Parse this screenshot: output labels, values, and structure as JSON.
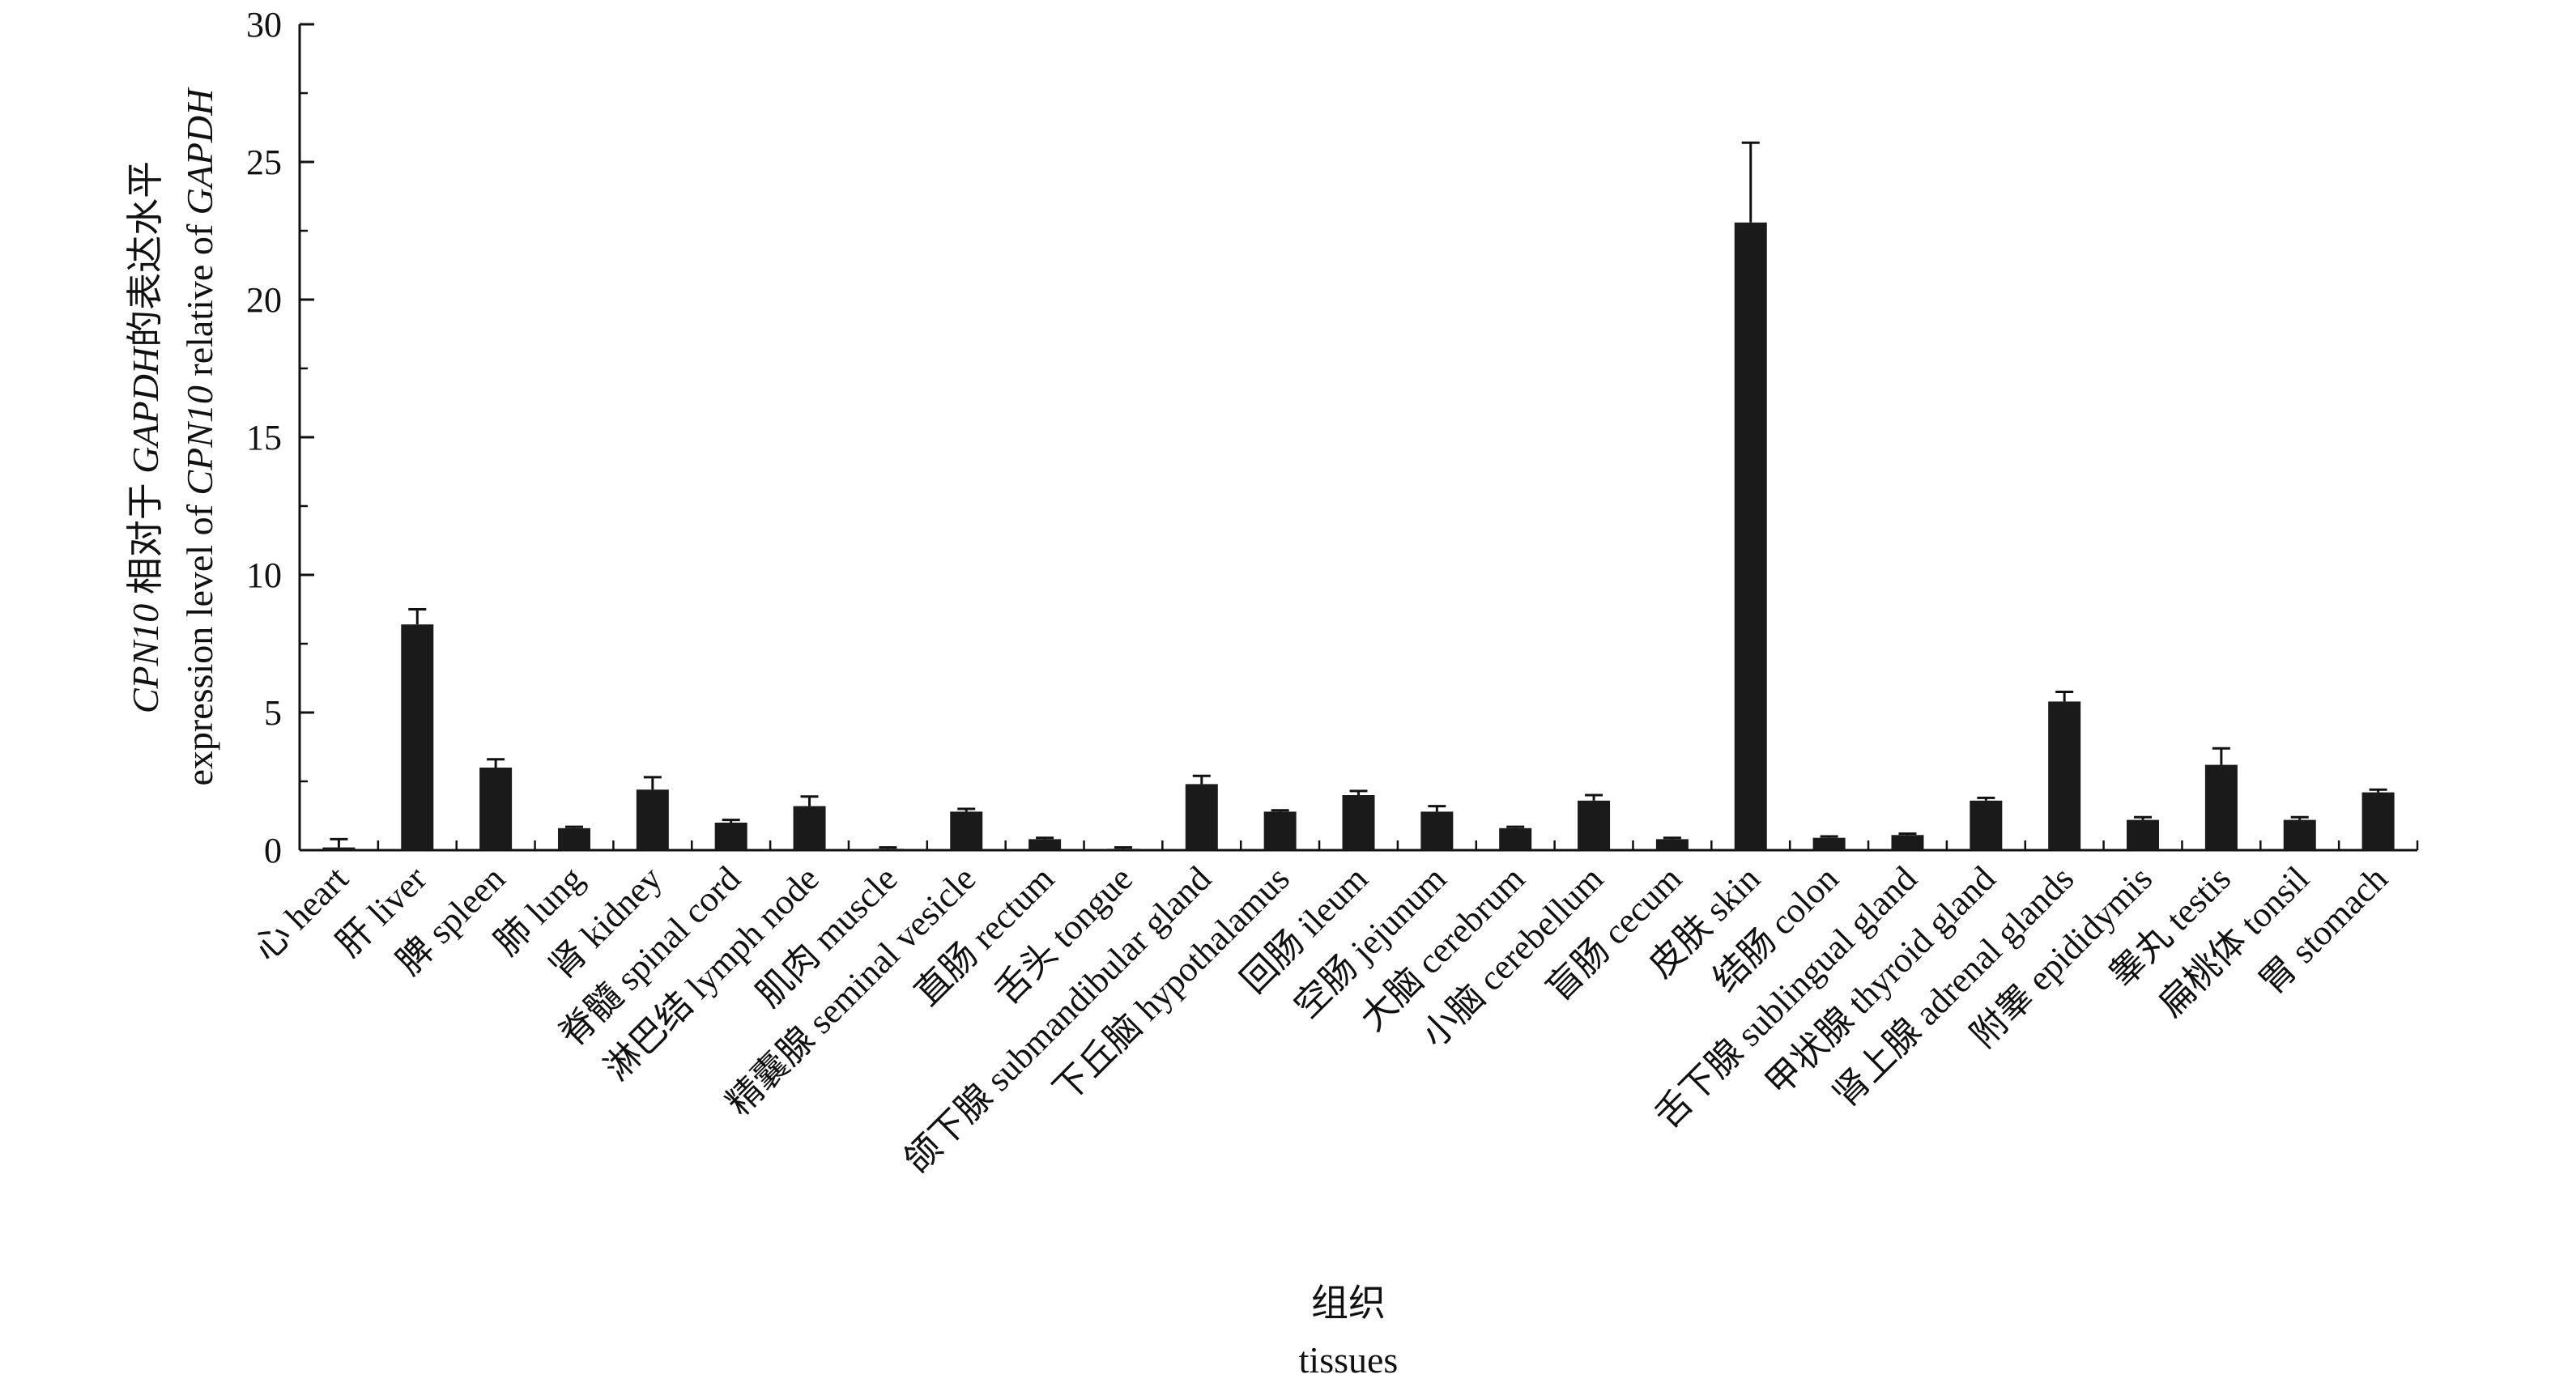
{
  "chart_data": {
    "type": "bar",
    "categories": [
      "心 heart",
      "肝 liver",
      "脾 spleen",
      "肺 lung",
      "肾 kidney",
      "脊髓 spinal cord",
      "淋巴结 lymph node",
      "肌肉 muscle",
      "精囊腺 seminal vesicle",
      "直肠 rectum",
      "舌头 tongue",
      "颌下腺 submandibular gland",
      "下丘脑 hypothalamus",
      "回肠 ileum",
      "空肠 jejunum",
      "大脑 cerebrum",
      "小脑 cerebellum",
      "盲肠 cecum",
      "皮肤 skin",
      "结肠 colon",
      "舌下腺 sublingual gland",
      "甲状腺 thyroid gland",
      "肾上腺 adrenal glands",
      "附睾 epididymis",
      "睾丸 testis",
      "扁桃体 tonsil",
      "胃 stomach"
    ],
    "values": [
      0.1,
      8.2,
      3.0,
      0.8,
      2.2,
      1.0,
      1.6,
      0.05,
      1.4,
      0.4,
      0.05,
      2.4,
      1.4,
      2.0,
      1.4,
      0.8,
      1.8,
      0.4,
      22.8,
      0.45,
      0.55,
      1.8,
      5.4,
      1.1,
      3.1,
      1.1,
      2.1
    ],
    "errors": [
      0.3,
      0.55,
      0.3,
      0.05,
      0.45,
      0.1,
      0.35,
      0.05,
      0.1,
      0.05,
      0.05,
      0.3,
      0.05,
      0.15,
      0.2,
      0.05,
      0.2,
      0.05,
      2.9,
      0.05,
      0.05,
      0.1,
      0.35,
      0.1,
      0.6,
      0.1,
      0.1
    ],
    "ylim": [
      0,
      30
    ],
    "yticks": [
      "0",
      "5",
      "10",
      "15",
      "20",
      "25",
      "30"
    ],
    "ylabel_lines": [
      {
        "parts": [
          {
            "text": "CPN10",
            "italic": true
          },
          {
            "text": " 相对于 ",
            "italic": false
          },
          {
            "text": "GAPDH",
            "italic": true
          },
          {
            "text": "的表达水平",
            "italic": false
          }
        ]
      },
      {
        "parts": [
          {
            "text": "expression level of ",
            "italic": false
          },
          {
            "text": "CPN10",
            "italic": true
          },
          {
            "text": " relative of ",
            "italic": false
          },
          {
            "text": "GAPDH",
            "italic": true
          }
        ]
      }
    ],
    "xlabel_cn": "组织",
    "xlabel_en": "tissues",
    "grid": false,
    "bar_color": "#1a1a1a"
  }
}
